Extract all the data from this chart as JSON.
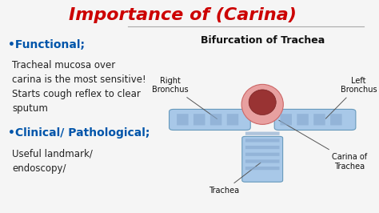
{
  "title": "Importance of (Carina)",
  "title_color": "#cc0000",
  "title_fontsize": 16,
  "bg_color": "#f5f5f5",
  "bullet1_text": "•Functional;",
  "bullet1_color": "#0055aa",
  "bullet1_fontsize": 10,
  "body1_text": "Tracheal mucosa over\ncarina is the most sensitive!\nStarts cough reflex to clear\nsputum",
  "body1_color": "#222222",
  "body1_fontsize": 8.5,
  "bullet2_text": "•Clinical/ Pathological;",
  "bullet2_color": "#0055aa",
  "bullet2_fontsize": 10,
  "body2_text": "Useful landmark/\nendoscopy/",
  "body2_color": "#222222",
  "body2_fontsize": 8.5,
  "diagram_title": "Bifurcation of Trachea",
  "diagram_title_color": "#111111",
  "diagram_title_fontsize": 9,
  "label_right_bronchus": "Right\nBronchus",
  "label_left_bronchus": "Left\nBronchus",
  "label_trachea": "Trachea",
  "label_carina": "Carina of\nTrachea",
  "label_color": "#111111",
  "label_fontsize": 7,
  "line_color": "#555555",
  "divider_color": "#aaaaaa"
}
